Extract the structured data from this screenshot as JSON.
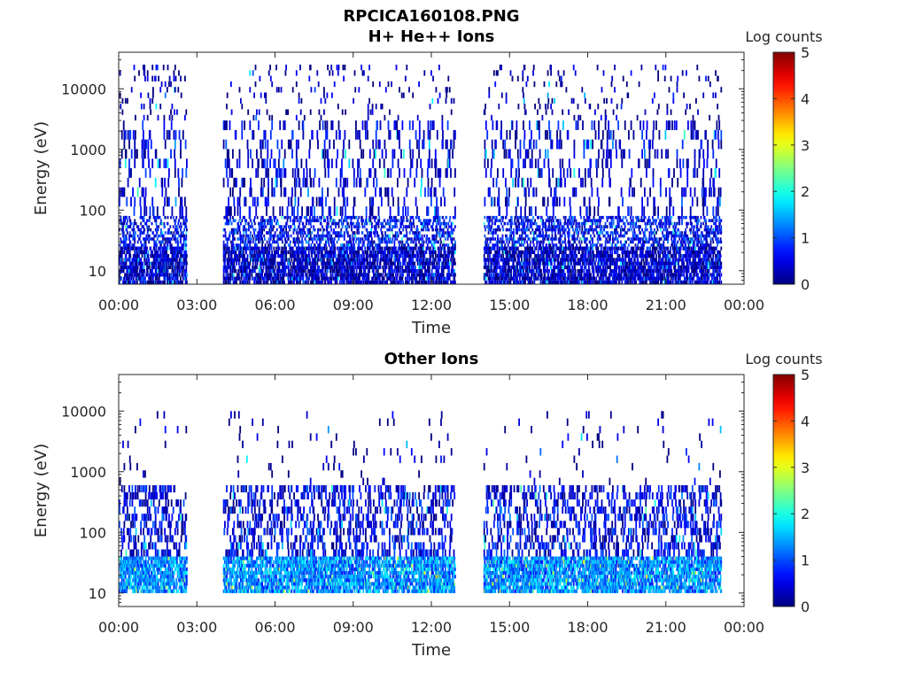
{
  "figure": {
    "title": "RPCICA160108.PNG",
    "colormap": "jet",
    "colorbar_label": "Log counts",
    "colorbar_ticks": [
      "0",
      "1",
      "2",
      "3",
      "4",
      "5"
    ]
  },
  "chart_data": [
    {
      "type": "heatmap",
      "title": "H+ He++ Ions",
      "xlabel": "Time",
      "ylabel": "Energy (eV)",
      "x_ticks": [
        "00:00",
        "03:00",
        "06:00",
        "09:00",
        "12:00",
        "15:00",
        "18:00",
        "21:00",
        "00:00"
      ],
      "xlim_hours": [
        0,
        24
      ],
      "y_scale": "log",
      "y_ticks": [
        "10",
        "100",
        "1000",
        "10000"
      ],
      "ylim": [
        6,
        40000
      ],
      "clim": [
        0,
        5
      ],
      "grid": false,
      "data_segments_hours": [
        [
          0.0,
          2.6
        ],
        [
          4.0,
          12.9
        ],
        [
          14.0,
          23.1
        ]
      ],
      "bands": [
        {
          "e_min": 6,
          "e_max": 25,
          "typical_log_counts": 0.3,
          "fill_fraction": 0.55
        },
        {
          "e_min": 25,
          "e_max": 80,
          "typical_log_counts": 0.6,
          "fill_fraction": 0.3
        },
        {
          "e_min": 80,
          "e_max": 3000,
          "typical_log_counts": 0.4,
          "fill_fraction": 0.12
        },
        {
          "e_min": 3000,
          "e_max": 25000,
          "typical_log_counts": 0.1,
          "fill_fraction": 0.04
        }
      ]
    },
    {
      "type": "heatmap",
      "title": "Other Ions",
      "xlabel": "Time",
      "ylabel": "Energy (eV)",
      "x_ticks": [
        "00:00",
        "03:00",
        "06:00",
        "09:00",
        "12:00",
        "15:00",
        "18:00",
        "21:00",
        "00:00"
      ],
      "xlim_hours": [
        0,
        24
      ],
      "y_scale": "log",
      "y_ticks": [
        "10",
        "100",
        "1000",
        "10000"
      ],
      "ylim": [
        6,
        40000
      ],
      "clim": [
        0,
        5
      ],
      "grid": false,
      "data_segments_hours": [
        [
          0.0,
          2.6
        ],
        [
          4.0,
          12.9
        ],
        [
          14.0,
          23.1
        ]
      ],
      "bands": [
        {
          "e_min": 10,
          "e_max": 40,
          "typical_log_counts": 1.3,
          "fill_fraction": 0.6
        },
        {
          "e_min": 40,
          "e_max": 600,
          "typical_log_counts": 0.5,
          "fill_fraction": 0.22
        },
        {
          "e_min": 600,
          "e_max": 10000,
          "typical_log_counts": 0.1,
          "fill_fraction": 0.02
        }
      ]
    }
  ]
}
